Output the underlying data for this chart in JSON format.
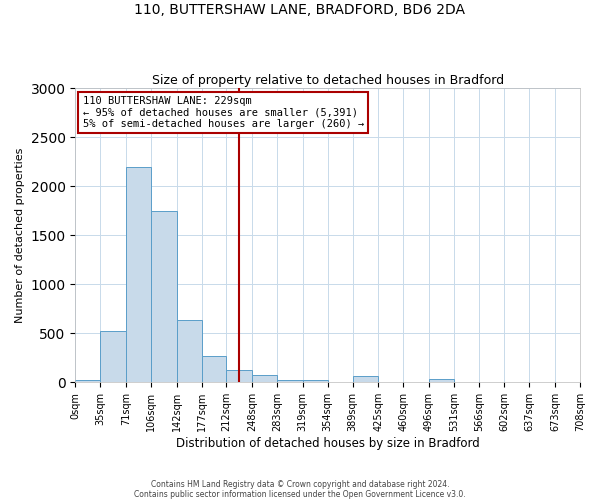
{
  "title": "110, BUTTERSHAW LANE, BRADFORD, BD6 2DA",
  "subtitle": "Size of property relative to detached houses in Bradford",
  "xlabel": "Distribution of detached houses by size in Bradford",
  "ylabel": "Number of detached properties",
  "bar_color": "#c8daea",
  "bar_edge_color": "#5a9ec9",
  "bin_edges": [
    0,
    35,
    71,
    106,
    142,
    177,
    212,
    248,
    283,
    319,
    354,
    389,
    425,
    460,
    496,
    531,
    566,
    602,
    637,
    673,
    708
  ],
  "bin_labels": [
    "0sqm",
    "35sqm",
    "71sqm",
    "106sqm",
    "142sqm",
    "177sqm",
    "212sqm",
    "248sqm",
    "283sqm",
    "319sqm",
    "354sqm",
    "389sqm",
    "425sqm",
    "460sqm",
    "496sqm",
    "531sqm",
    "566sqm",
    "602sqm",
    "637sqm",
    "673sqm",
    "708sqm"
  ],
  "bar_heights": [
    20,
    520,
    2200,
    1750,
    640,
    270,
    130,
    70,
    25,
    25,
    0,
    60,
    0,
    0,
    30,
    0,
    0,
    0,
    0,
    0
  ],
  "vline_x": 229,
  "vline_color": "#aa0000",
  "ylim": [
    0,
    3000
  ],
  "annotation_title": "110 BUTTERSHAW LANE: 229sqm",
  "annotation_line1": "← 95% of detached houses are smaller (5,391)",
  "annotation_line2": "5% of semi-detached houses are larger (260) →",
  "annotation_box_color": "#ffffff",
  "annotation_box_edge": "#aa0000",
  "footer1": "Contains HM Land Registry data © Crown copyright and database right 2024.",
  "footer2": "Contains public sector information licensed under the Open Government Licence v3.0.",
  "background_color": "#ffffff",
  "grid_color": "#c8daea",
  "title_fontsize": 10,
  "subtitle_fontsize": 9,
  "ylabel_fontsize": 8,
  "xlabel_fontsize": 8.5,
  "tick_fontsize": 7,
  "annot_fontsize": 7.5,
  "footer_fontsize": 5.5
}
